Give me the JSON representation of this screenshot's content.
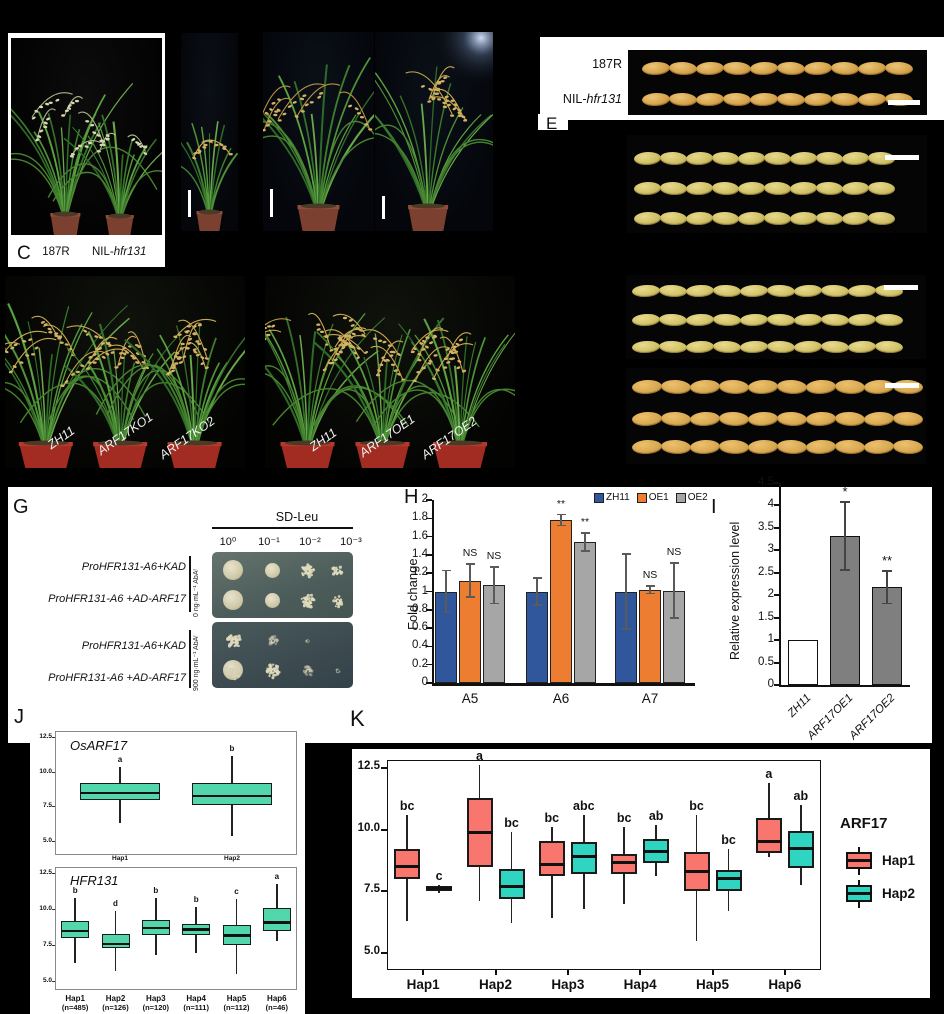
{
  "figure": {
    "panel_letters": {
      "c": "C",
      "e": "E",
      "g": "G",
      "h": "H",
      "i": "I",
      "j": "J",
      "k": "K"
    }
  },
  "panel_a": {
    "label_left": "187R",
    "label_right_prefix": "NIL-",
    "label_right_italic": "hfr131"
  },
  "panel_c": {
    "left_plants": [
      "ZH11",
      "ARF17KO1",
      "ARF17KO2"
    ],
    "right_plants": [
      "ZH11",
      "ARF17OE1",
      "ARF17OE2"
    ]
  },
  "panel_d": {
    "label_top": "187R",
    "label_bottom_prefix": "NIL-",
    "label_bottom_italic": "hfr131"
  },
  "panel_g": {
    "media": "SD-Leu",
    "dilutions": [
      "10⁰",
      "10⁻¹",
      "10⁻²",
      "10⁻³"
    ],
    "row_labels": [
      "ProHFR131-A6+KAD",
      "ProHFR131-A6 +AD-ARF17",
      "ProHFR131-A6+KAD",
      "ProHFR131-A6 +AD-ARF17"
    ],
    "conditions": [
      "0 ng·mL⁻¹ AbAʳ",
      "900 ng·mL⁻¹ AbAʳ"
    ],
    "plates": [
      {
        "rows": [
          [
            "solid-lg",
            "solid",
            "speckle",
            "sparse"
          ],
          [
            "solid-lg",
            "solid",
            "speckle",
            "sparse"
          ]
        ]
      },
      {
        "rows": [
          [
            "speckle",
            "faint",
            "trace",
            "none"
          ],
          [
            "grainy",
            "speckle",
            "faint",
            "trace"
          ]
        ]
      }
    ]
  },
  "chart_data": [
    {
      "id": "H",
      "type": "bar",
      "ylabel": "Fold change",
      "ylim": [
        0,
        2
      ],
      "ytick_step": 0.2,
      "categories": [
        "A5",
        "A6",
        "A7"
      ],
      "legend": [
        "ZH11",
        "OE1",
        "OE2"
      ],
      "series": [
        {
          "name": "ZH11",
          "color": "#30579B",
          "values": [
            1.0,
            1.0,
            1.0
          ],
          "err": [
            0.23,
            0.15,
            0.41
          ],
          "sig": [
            "",
            "",
            ""
          ]
        },
        {
          "name": "OE1",
          "color": "#ED7D31",
          "values": [
            1.12,
            1.78,
            1.02
          ],
          "err": [
            0.18,
            0.06,
            0.04
          ],
          "sig": [
            "NS",
            "**",
            "NS"
          ]
        },
        {
          "name": "OE2",
          "color": "#A6A6A6",
          "values": [
            1.07,
            1.54,
            1.01
          ],
          "err": [
            0.2,
            0.1,
            0.3
          ],
          "sig": [
            "NS",
            "**",
            "NS"
          ]
        }
      ]
    },
    {
      "id": "I",
      "type": "bar",
      "ylabel": "Relative expression level",
      "ylim": [
        0,
        4.5
      ],
      "ytick_step": 0.5,
      "categories": [
        "ZH11",
        "ARF17OE1",
        "ARF17OE2"
      ],
      "values": [
        1.0,
        3.32,
        2.18
      ],
      "err": [
        0.03,
        0.76,
        0.36
      ],
      "sig": [
        "",
        "*",
        "**"
      ],
      "bar_colors": [
        "#ffffff",
        "#7f7f7f",
        "#7f7f7f"
      ]
    },
    {
      "id": "J1",
      "type": "boxplot",
      "title": "OsARF17",
      "yticks": [
        12.5,
        10.0,
        7.5,
        5.0
      ],
      "categories": [
        "Hap1",
        "Hap2"
      ],
      "letters": [
        "a",
        "b"
      ],
      "boxes": [
        {
          "lo": 6.3,
          "q1": 8.0,
          "med": 8.5,
          "q3": 9.2,
          "hi": 10.4
        },
        {
          "lo": 5.4,
          "q1": 7.6,
          "med": 8.3,
          "q3": 9.2,
          "hi": 11.2
        }
      ]
    },
    {
      "id": "J2",
      "type": "boxplot",
      "title": "HFR131",
      "yticks": [
        12.5,
        10.0,
        7.5,
        5.0
      ],
      "categories": [
        "Hap1",
        "Hap2",
        "Hap3",
        "Hap4",
        "Hap5",
        "Hap6"
      ],
      "sample_sizes": [
        "(n=485)",
        "(n=126)",
        "(n=120)",
        "(n=111)",
        "(n=112)",
        "(n=46)"
      ],
      "letters": [
        "b",
        "d",
        "b",
        "b",
        "c",
        "a"
      ],
      "boxes": [
        {
          "lo": 6.3,
          "q1": 8.0,
          "med": 8.5,
          "q3": 9.2,
          "hi": 10.8
        },
        {
          "lo": 5.7,
          "q1": 7.3,
          "med": 7.6,
          "q3": 8.3,
          "hi": 9.9
        },
        {
          "lo": 6.8,
          "q1": 8.2,
          "med": 8.7,
          "q3": 9.3,
          "hi": 10.8
        },
        {
          "lo": 7.0,
          "q1": 8.2,
          "med": 8.6,
          "q3": 9.0,
          "hi": 10.2
        },
        {
          "lo": 5.5,
          "q1": 7.5,
          "med": 8.2,
          "q3": 8.9,
          "hi": 10.7
        },
        {
          "lo": 7.8,
          "q1": 8.5,
          "med": 9.1,
          "q3": 10.1,
          "hi": 11.8
        }
      ]
    },
    {
      "id": "K",
      "type": "grouped-boxplot",
      "legend_title": "ARF17",
      "yticks": [
        12.5,
        10.0,
        7.5,
        5.0
      ],
      "categories": [
        "Hap1",
        "Hap2",
        "Hap3",
        "Hap4",
        "Hap5",
        "Hap6"
      ],
      "series": [
        {
          "name": "Hap1",
          "color": "#F8766D",
          "letters": [
            "bc",
            "a",
            "bc",
            "bc",
            "bc",
            "a"
          ],
          "boxes": [
            {
              "lo": 6.3,
              "q1": 8.0,
              "med": 8.5,
              "q3": 9.2,
              "hi": 10.6
            },
            {
              "lo": 7.1,
              "q1": 8.5,
              "med": 9.9,
              "q3": 11.3,
              "hi": 12.6
            },
            {
              "lo": 6.4,
              "q1": 8.1,
              "med": 8.6,
              "q3": 9.55,
              "hi": 10.1
            },
            {
              "lo": 7.0,
              "q1": 8.2,
              "med": 8.65,
              "q3": 9.0,
              "hi": 10.1
            },
            {
              "lo": 5.5,
              "q1": 7.5,
              "med": 8.3,
              "q3": 9.1,
              "hi": 10.6
            },
            {
              "lo": 8.9,
              "q1": 9.05,
              "med": 9.5,
              "q3": 10.45,
              "hi": 11.9
            }
          ]
        },
        {
          "name": "Hap2",
          "color": "#2FD5C0",
          "letters": [
            "c",
            "bc",
            "abc",
            "ab",
            "bc",
            "ab"
          ],
          "boxes": [
            {
              "lo": 7.45,
              "q1": 7.5,
              "med": 7.6,
              "q3": 7.7,
              "hi": 7.75
            },
            {
              "lo": 6.2,
              "q1": 7.2,
              "med": 7.7,
              "q3": 8.4,
              "hi": 9.9
            },
            {
              "lo": 6.8,
              "q1": 8.2,
              "med": 8.9,
              "q3": 9.5,
              "hi": 10.6
            },
            {
              "lo": 8.1,
              "q1": 8.65,
              "med": 9.1,
              "q3": 9.6,
              "hi": 10.2
            },
            {
              "lo": 6.7,
              "q1": 7.5,
              "med": 8.0,
              "q3": 8.35,
              "hi": 9.2
            },
            {
              "lo": 7.75,
              "q1": 8.45,
              "med": 9.25,
              "q3": 9.95,
              "hi": 11.0
            }
          ]
        }
      ]
    }
  ]
}
